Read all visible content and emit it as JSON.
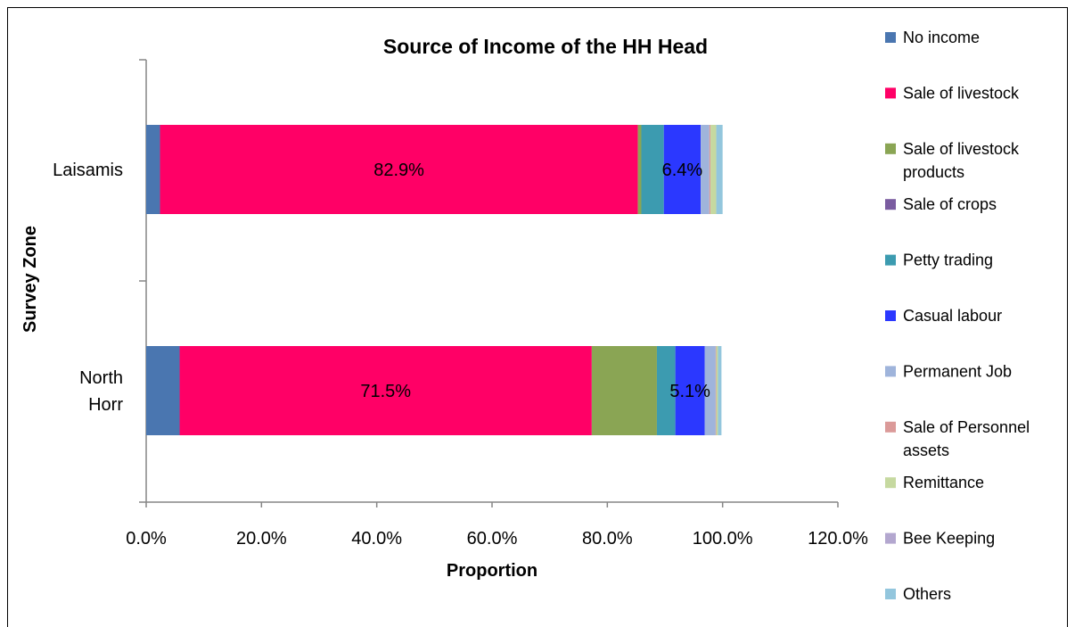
{
  "chart_data": {
    "type": "bar",
    "orientation": "horizontal",
    "stacked": true,
    "title": "Source of Income of the HH Head",
    "xlabel": "Proportion",
    "ylabel": "Survey Zone",
    "xlim": [
      0,
      120
    ],
    "x_ticks": [
      "0.0%",
      "20.0%",
      "40.0%",
      "60.0%",
      "80.0%",
      "100.0%",
      "120.0%"
    ],
    "categories": [
      "Laisamis",
      "North Horr"
    ],
    "category_labels": [
      [
        "Laisamis"
      ],
      [
        "North",
        "Horr"
      ]
    ],
    "series": [
      {
        "name": "No income",
        "color": "#4a76b0",
        "values": [
          2.4,
          5.8
        ]
      },
      {
        "name": "Sale of livestock",
        "color": "#ff0066",
        "values": [
          82.9,
          71.5
        ]
      },
      {
        "name": "Sale of livestock products",
        "legend_lines": [
          "Sale of livestock",
          "products"
        ],
        "color": "#8aa554",
        "values": [
          0.6,
          11.3
        ]
      },
      {
        "name": "Sale of crops",
        "color": "#7a5ca0",
        "values": [
          0.0,
          0.0
        ]
      },
      {
        "name": "Petty trading",
        "color": "#3c9bb0",
        "values": [
          3.9,
          3.2
        ]
      },
      {
        "name": "Casual labour",
        "color": "#2b38ff",
        "values": [
          6.4,
          5.1
        ]
      },
      {
        "name": "Permanent Job",
        "color": "#9fb4db",
        "values": [
          1.5,
          1.9
        ]
      },
      {
        "name": "Sale of Personnel assets",
        "legend_lines": [
          "Sale of Personnel",
          "assets"
        ],
        "color": "#db9a99",
        "values": [
          0.2,
          0.1
        ]
      },
      {
        "name": "Remittance",
        "color": "#c6d9a0",
        "values": [
          1.0,
          0.3
        ]
      },
      {
        "name": "Bee Keeping",
        "color": "#b3a7cf",
        "values": [
          0.0,
          0.0
        ]
      },
      {
        "name": "Others",
        "color": "#93c6dd",
        "values": [
          1.1,
          0.6
        ]
      }
    ],
    "data_labels": [
      {
        "category": 0,
        "series": 1,
        "text": "82.9%"
      },
      {
        "category": 0,
        "series": 5,
        "text": "6.4%"
      },
      {
        "category": 1,
        "series": 1,
        "text": "71.5%"
      },
      {
        "category": 1,
        "series": 5,
        "text": "5.1%"
      }
    ],
    "grid": false,
    "legend_position": "right"
  }
}
